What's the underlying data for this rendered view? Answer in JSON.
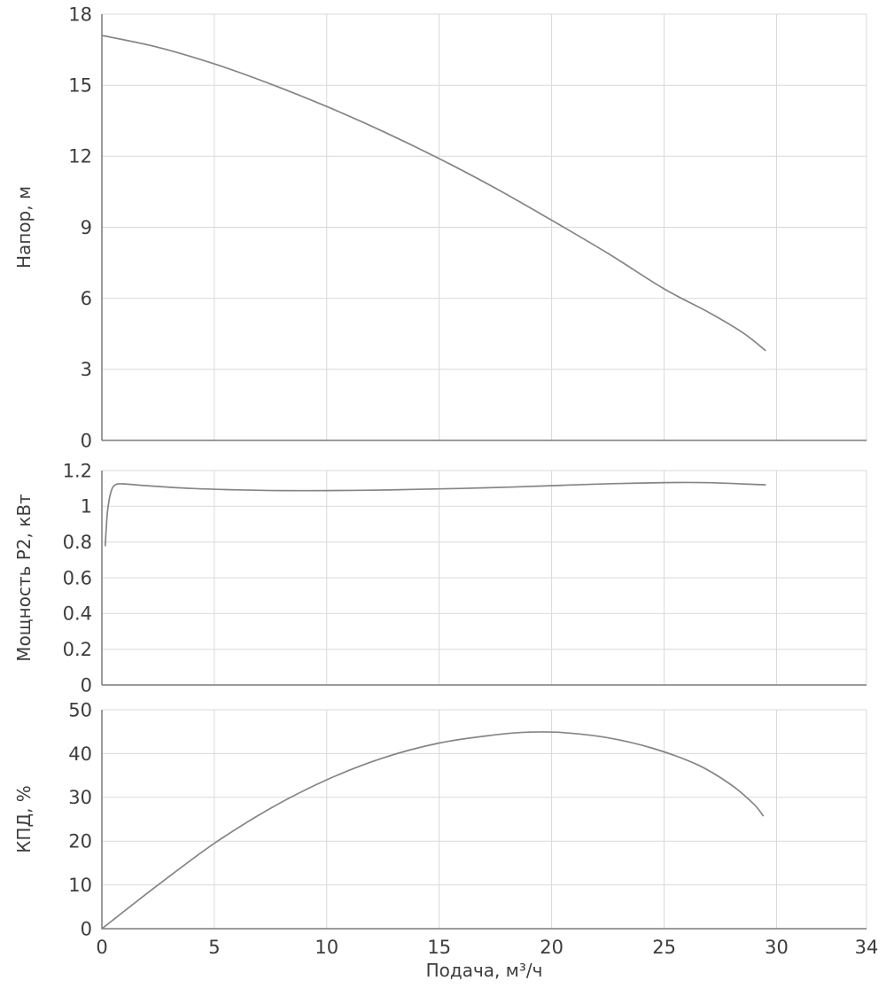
{
  "figure": {
    "xlabel": "Подача, м³/ч",
    "xlim": [
      0,
      34
    ],
    "xticks": [
      0,
      5,
      10,
      15,
      20,
      25,
      30,
      34
    ]
  },
  "chart_data": [
    {
      "type": "line",
      "name": "head-curve",
      "ylabel": "Напор, м",
      "ylim": [
        0,
        18
      ],
      "yticks": [
        0,
        3,
        6,
        9,
        12,
        15,
        18
      ],
      "x": [
        0,
        2.5,
        5,
        7.5,
        10,
        12.5,
        15,
        17.5,
        20,
        22.5,
        25,
        27,
        28.5,
        29.5
      ],
      "y": [
        17.1,
        16.6,
        15.9,
        15.05,
        14.1,
        13.05,
        11.9,
        10.65,
        9.3,
        7.9,
        6.4,
        5.4,
        4.55,
        3.8
      ]
    },
    {
      "type": "line",
      "name": "power-curve",
      "ylabel": "Мощность P2, кВт",
      "ylim": [
        0,
        1.2
      ],
      "yticks": [
        0,
        0.2,
        0.4,
        0.6,
        0.8,
        1,
        1.2
      ],
      "x": [
        0.15,
        0.25,
        0.4,
        0.6,
        1.0,
        2,
        4,
        6,
        8,
        10,
        12,
        14,
        16,
        18,
        20,
        22,
        24,
        25.5,
        27,
        28.5,
        29.5
      ],
      "y": [
        0.78,
        0.97,
        1.08,
        1.12,
        1.125,
        1.115,
        1.1,
        1.092,
        1.088,
        1.088,
        1.09,
        1.095,
        1.1,
        1.107,
        1.115,
        1.124,
        1.13,
        1.133,
        1.132,
        1.125,
        1.12
      ]
    },
    {
      "type": "line",
      "name": "efficiency-curve",
      "ylabel": "КПД, %",
      "ylim": [
        0,
        50
      ],
      "yticks": [
        0,
        10,
        20,
        30,
        40,
        50
      ],
      "x": [
        0,
        2.5,
        5,
        7.5,
        10,
        12.5,
        15,
        17.5,
        19,
        20.5,
        22.5,
        24.5,
        26.5,
        28,
        29,
        29.4
      ],
      "y": [
        0,
        10,
        19.5,
        27.5,
        34,
        39,
        42.4,
        44.3,
        44.9,
        44.8,
        43.6,
        41.2,
        37.4,
        32.8,
        28.4,
        25.8
      ]
    }
  ],
  "colors": {
    "line": "#858585",
    "grid": "#d9d9d9",
    "axis": "#7a7a7a",
    "text": "#3d3d3d",
    "background": "#ffffff"
  }
}
